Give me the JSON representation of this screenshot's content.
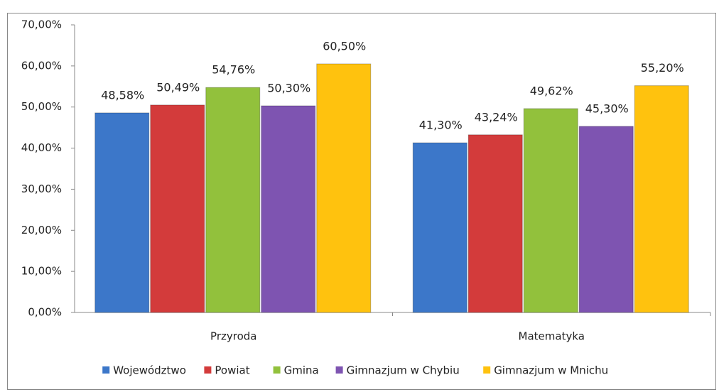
{
  "chart_data": {
    "type": "bar",
    "categories": [
      "Przyroda",
      "Matematyka"
    ],
    "series": [
      {
        "name": "Województwo",
        "color": "#3c77c9",
        "values": [
          48.58,
          41.3
        ],
        "value_labels": [
          "48,58%",
          "41,30%"
        ]
      },
      {
        "name": "Powiat",
        "color": "#d33b3b",
        "values": [
          50.49,
          43.24
        ],
        "value_labels": [
          "50,49%",
          "43,24%"
        ]
      },
      {
        "name": "Gmina",
        "color": "#92c13c",
        "values": [
          54.76,
          49.62
        ],
        "value_labels": [
          "54,76%",
          "49,62%"
        ]
      },
      {
        "name": "Gimnazjum w Chybiu",
        "color": "#7e54b1",
        "values": [
          50.3,
          45.3
        ],
        "value_labels": [
          "50,30%",
          "45,30%"
        ]
      },
      {
        "name": "Gimnazjum w Mnichu",
        "color": "#ffc20e",
        "values": [
          60.5,
          55.2
        ],
        "value_labels": [
          "60,50%",
          "55,20%"
        ]
      }
    ],
    "ylim": [
      0,
      70
    ],
    "yticks": [
      {
        "value": 0,
        "label": "0,00%"
      },
      {
        "value": 10,
        "label": "10,00%"
      },
      {
        "value": 20,
        "label": "20,00%"
      },
      {
        "value": 30,
        "label": "30,00%"
      },
      {
        "value": 40,
        "label": "40,00%"
      },
      {
        "value": 50,
        "label": "50,00%"
      },
      {
        "value": 60,
        "label": "60,00%"
      },
      {
        "value": 70,
        "label": "70,00%"
      }
    ],
    "legend": "bottom"
  }
}
